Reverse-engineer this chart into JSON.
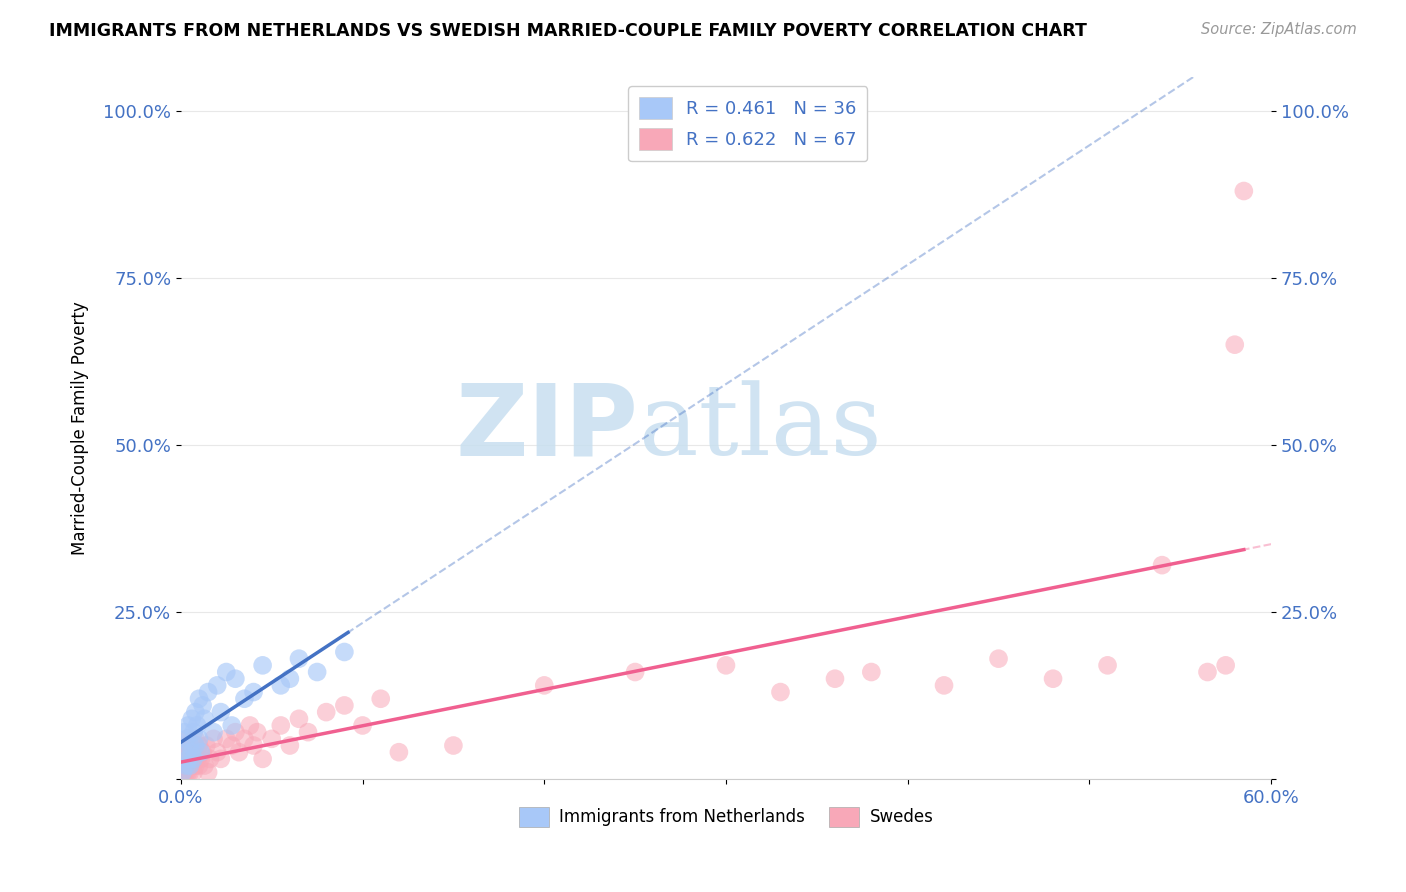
{
  "title": "IMMIGRANTS FROM NETHERLANDS VS SWEDISH MARRIED-COUPLE FAMILY POVERTY CORRELATION CHART",
  "source": "Source: ZipAtlas.com",
  "ylabel": "Married-Couple Family Poverty",
  "xlim": [
    0.0,
    0.6
  ],
  "ylim": [
    0.0,
    1.05
  ],
  "xtick_positions": [
    0.0,
    0.1,
    0.2,
    0.3,
    0.4,
    0.5,
    0.6
  ],
  "xticklabels": [
    "0.0%",
    "",
    "",
    "",
    "",
    "",
    "60.0%"
  ],
  "ytick_positions": [
    0.0,
    0.25,
    0.5,
    0.75,
    1.0
  ],
  "yticklabels": [
    "",
    "25.0%",
    "50.0%",
    "75.0%",
    "100.0%"
  ],
  "netherlands_R": "0.461",
  "netherlands_N": "36",
  "swedes_R": "0.622",
  "swedes_N": "67",
  "netherlands_color": "#a8c8f8",
  "swedes_color": "#f8a8b8",
  "netherlands_line_color": "#4472c4",
  "swedes_line_color": "#f06090",
  "netherlands_line_slope": 1.45,
  "netherlands_line_intercept": 0.02,
  "netherlands_line_xmax": 0.092,
  "swedes_line_slope": 0.62,
  "swedes_line_intercept": 0.005,
  "netherlands_points_x": [
    0.001,
    0.002,
    0.002,
    0.003,
    0.003,
    0.004,
    0.004,
    0.005,
    0.005,
    0.006,
    0.006,
    0.007,
    0.007,
    0.008,
    0.008,
    0.009,
    0.01,
    0.01,
    0.011,
    0.012,
    0.013,
    0.015,
    0.018,
    0.02,
    0.022,
    0.025,
    0.028,
    0.03,
    0.035,
    0.04,
    0.045,
    0.055,
    0.06,
    0.065,
    0.075,
    0.09
  ],
  "netherlands_points_y": [
    0.01,
    0.04,
    0.07,
    0.02,
    0.06,
    0.03,
    0.08,
    0.02,
    0.05,
    0.04,
    0.09,
    0.03,
    0.07,
    0.05,
    0.1,
    0.08,
    0.06,
    0.12,
    0.04,
    0.11,
    0.09,
    0.13,
    0.07,
    0.14,
    0.1,
    0.16,
    0.08,
    0.15,
    0.12,
    0.13,
    0.17,
    0.14,
    0.15,
    0.18,
    0.16,
    0.19
  ],
  "swedes_points_x": [
    0.001,
    0.001,
    0.002,
    0.002,
    0.002,
    0.003,
    0.003,
    0.003,
    0.004,
    0.004,
    0.004,
    0.005,
    0.005,
    0.005,
    0.006,
    0.006,
    0.007,
    0.007,
    0.008,
    0.008,
    0.009,
    0.01,
    0.01,
    0.011,
    0.012,
    0.013,
    0.014,
    0.015,
    0.016,
    0.018,
    0.02,
    0.022,
    0.025,
    0.028,
    0.03,
    0.032,
    0.035,
    0.038,
    0.04,
    0.042,
    0.045,
    0.05,
    0.055,
    0.06,
    0.065,
    0.07,
    0.08,
    0.09,
    0.1,
    0.11,
    0.12,
    0.15,
    0.2,
    0.25,
    0.3,
    0.33,
    0.36,
    0.38,
    0.42,
    0.45,
    0.48,
    0.51,
    0.54,
    0.565,
    0.575,
    0.58,
    0.585
  ],
  "swedes_points_y": [
    0.01,
    0.03,
    0.01,
    0.02,
    0.04,
    0.01,
    0.02,
    0.05,
    0.01,
    0.03,
    0.06,
    0.01,
    0.03,
    0.05,
    0.02,
    0.04,
    0.01,
    0.03,
    0.02,
    0.06,
    0.03,
    0.02,
    0.05,
    0.03,
    0.04,
    0.02,
    0.05,
    0.01,
    0.03,
    0.06,
    0.04,
    0.03,
    0.06,
    0.05,
    0.07,
    0.04,
    0.06,
    0.08,
    0.05,
    0.07,
    0.03,
    0.06,
    0.08,
    0.05,
    0.09,
    0.07,
    0.1,
    0.11,
    0.08,
    0.12,
    0.04,
    0.05,
    0.14,
    0.16,
    0.17,
    0.13,
    0.15,
    0.16,
    0.14,
    0.18,
    0.15,
    0.17,
    0.32,
    0.16,
    0.17,
    0.65,
    0.88
  ],
  "watermark_zip": "ZIP",
  "watermark_atlas": "atlas",
  "watermark_color_zip": "#c8dff0",
  "watermark_color_atlas": "#c8dff0",
  "background_color": "#ffffff",
  "grid_color": "#e8e8e8",
  "tick_color": "#4472c4",
  "legend_text_color": "#4472c4"
}
